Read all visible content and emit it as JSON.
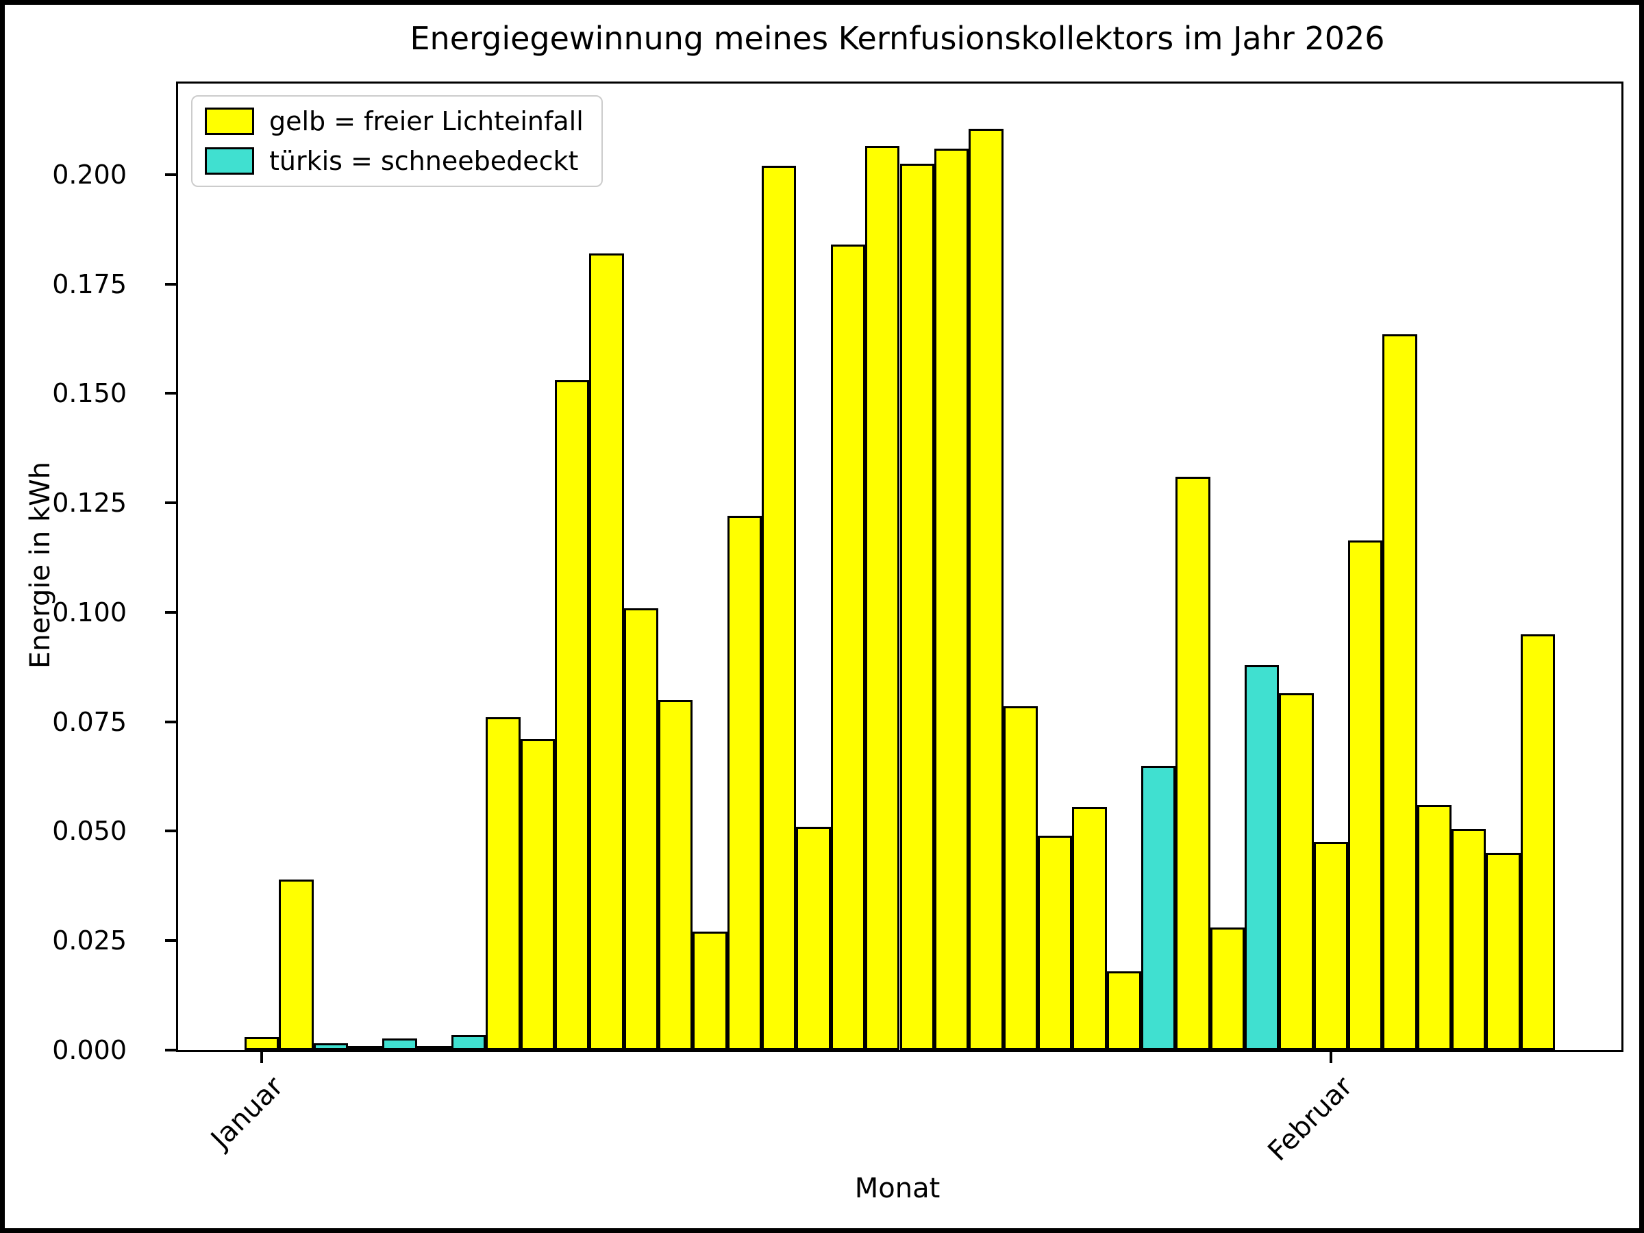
{
  "title": "Energiegewinnung meines Kernfusionskollektors im Jahr 2026",
  "legend": {
    "items": [
      {
        "label": "gelb = freier Lichteinfall",
        "group": "gelb",
        "color": "#ffff00"
      },
      {
        "label": "türkis = schneebedeckt",
        "group": "tuerkis",
        "color": "#40e0d0"
      }
    ]
  },
  "chart_data": {
    "type": "bar",
    "title": "Energiegewinnung meines Kernfusionskollektors im Jahr 2026",
    "xlabel": "Monat",
    "ylabel": "Energie in kWh",
    "ylim": [
      0,
      0.2208
    ],
    "grid": false,
    "legend_position": "upper-left",
    "yticks": [
      0.0,
      0.025,
      0.05,
      0.075,
      0.1,
      0.125,
      0.15,
      0.175,
      0.2
    ],
    "ytick_labels": [
      "0.000",
      "0.025",
      "0.050",
      "0.075",
      "0.100",
      "0.125",
      "0.150",
      "0.175",
      "0.200"
    ],
    "xticks": [
      {
        "label": "Januar",
        "day_index": 1
      },
      {
        "label": "Februar",
        "day_index": 32
      }
    ],
    "colors": {
      "gelb": "#ffff00",
      "tuerkis": "#40e0d0"
    },
    "bar_edge_color": "#000000",
    "bars": [
      {
        "day": "Jan 1",
        "value": 0.003,
        "group": "gelb"
      },
      {
        "day": "Jan 2",
        "value": 0.039,
        "group": "gelb"
      },
      {
        "day": "Jan 3",
        "value": 0.0015,
        "group": "tuerkis"
      },
      {
        "day": "Jan 4",
        "value": 0.0005,
        "group": "tuerkis"
      },
      {
        "day": "Jan 5",
        "value": 0.0027,
        "group": "tuerkis"
      },
      {
        "day": "Jan 6",
        "value": 0.001,
        "group": "tuerkis"
      },
      {
        "day": "Jan 7",
        "value": 0.0035,
        "group": "tuerkis"
      },
      {
        "day": "Jan 8",
        "value": 0.076,
        "group": "gelb"
      },
      {
        "day": "Jan 9",
        "value": 0.071,
        "group": "gelb"
      },
      {
        "day": "Jan 10",
        "value": 0.153,
        "group": "gelb"
      },
      {
        "day": "Jan 11",
        "value": 0.182,
        "group": "gelb"
      },
      {
        "day": "Jan 12",
        "value": 0.101,
        "group": "gelb"
      },
      {
        "day": "Jan 13",
        "value": 0.08,
        "group": "gelb"
      },
      {
        "day": "Jan 14",
        "value": 0.027,
        "group": "gelb"
      },
      {
        "day": "Jan 15",
        "value": 0.122,
        "group": "gelb"
      },
      {
        "day": "Jan 16",
        "value": 0.202,
        "group": "gelb"
      },
      {
        "day": "Jan 17",
        "value": 0.051,
        "group": "gelb"
      },
      {
        "day": "Jan 18",
        "value": 0.184,
        "group": "gelb"
      },
      {
        "day": "Jan 19",
        "value": 0.2065,
        "group": "gelb"
      },
      {
        "day": "Jan 20",
        "value": 0.2025,
        "group": "gelb"
      },
      {
        "day": "Jan 21",
        "value": 0.206,
        "group": "gelb"
      },
      {
        "day": "Jan 22",
        "value": 0.2105,
        "group": "gelb"
      },
      {
        "day": "Jan 23",
        "value": 0.0785,
        "group": "gelb"
      },
      {
        "day": "Jan 24",
        "value": 0.049,
        "group": "gelb"
      },
      {
        "day": "Jan 25",
        "value": 0.0555,
        "group": "gelb"
      },
      {
        "day": "Jan 26",
        "value": 0.018,
        "group": "gelb"
      },
      {
        "day": "Jan 27",
        "value": 0.065,
        "group": "tuerkis"
      },
      {
        "day": "Jan 28",
        "value": 0.131,
        "group": "gelb"
      },
      {
        "day": "Jan 29",
        "value": 0.028,
        "group": "gelb"
      },
      {
        "day": "Jan 30",
        "value": 0.088,
        "group": "tuerkis"
      },
      {
        "day": "Jan 31",
        "value": 0.0815,
        "group": "gelb"
      },
      {
        "day": "Feb 1",
        "value": 0.0475,
        "group": "gelb"
      },
      {
        "day": "Feb 2",
        "value": 0.1165,
        "group": "gelb"
      },
      {
        "day": "Feb 3",
        "value": 0.1635,
        "group": "gelb"
      },
      {
        "day": "Feb 4",
        "value": 0.056,
        "group": "gelb"
      },
      {
        "day": "Feb 5",
        "value": 0.0505,
        "group": "gelb"
      },
      {
        "day": "Feb 6",
        "value": 0.045,
        "group": "gelb"
      },
      {
        "day": "Feb 7",
        "value": 0.095,
        "group": "gelb"
      }
    ]
  }
}
